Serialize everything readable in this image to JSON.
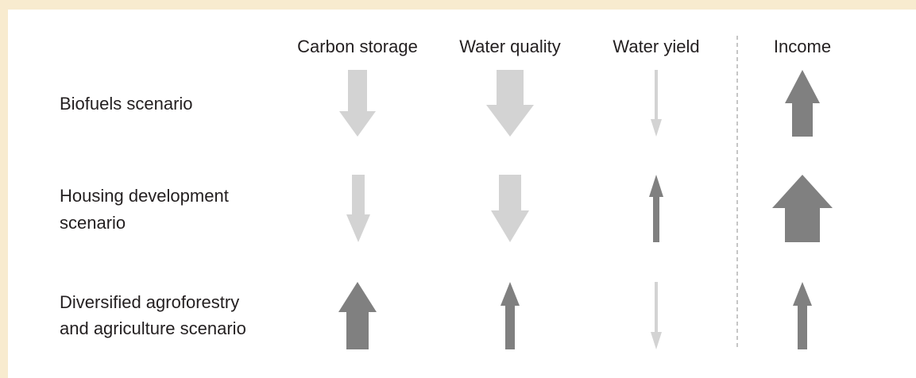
{
  "columns": [
    "Carbon storage",
    "Water quality",
    "Water yield",
    "Income"
  ],
  "rows": [
    {
      "label": [
        "Biofuels scenario"
      ]
    },
    {
      "label": [
        "Housing development",
        "scenario"
      ]
    },
    {
      "label": [
        "Diversified agroforestry",
        "and agriculture scenario"
      ]
    }
  ]
}
